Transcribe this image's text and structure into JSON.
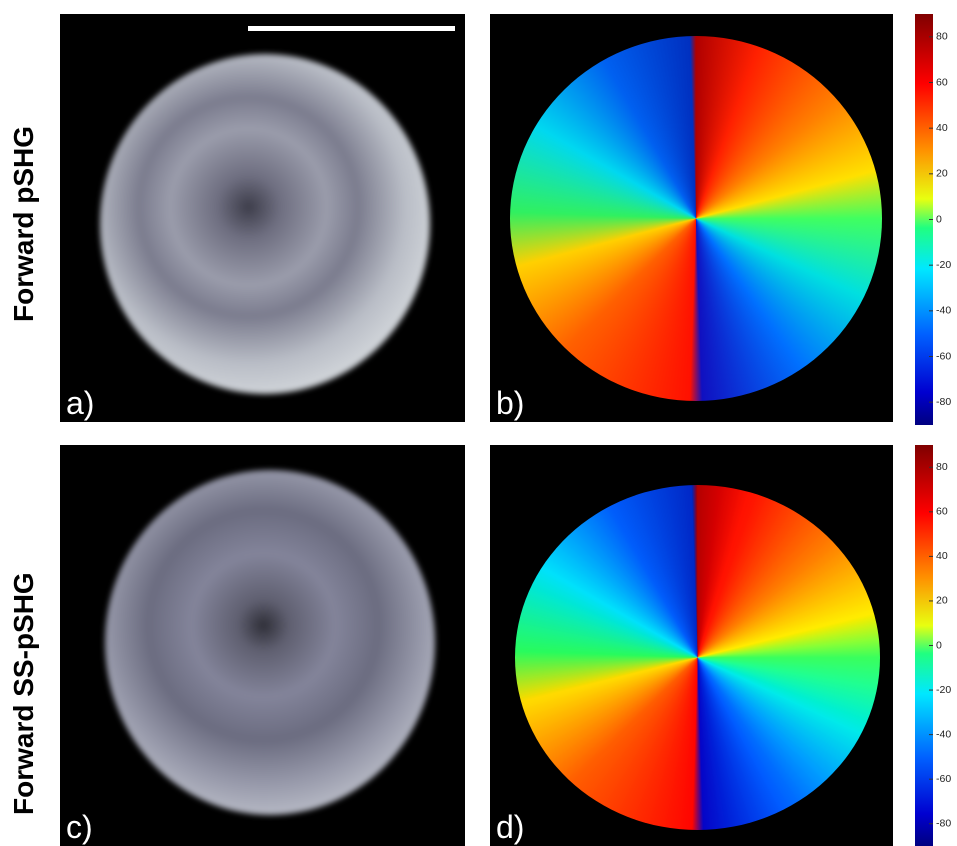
{
  "rows": [
    {
      "label": "Forward pSHG",
      "panels": [
        {
          "label": "a)"
        },
        {
          "label": "b)"
        }
      ],
      "colorbar": {
        "range": [
          -90,
          90
        ],
        "ticks": [
          80,
          60,
          40,
          20,
          0,
          -20,
          -40,
          -60,
          -80
        ]
      }
    },
    {
      "label": "Forward SS-pSHG",
      "panels": [
        {
          "label": "c)"
        },
        {
          "label": "d)"
        }
      ],
      "colorbar": {
        "range": [
          -90,
          90
        ],
        "ticks": [
          80,
          60,
          40,
          20,
          0,
          -20,
          -40,
          -60,
          -80
        ]
      }
    }
  ]
}
